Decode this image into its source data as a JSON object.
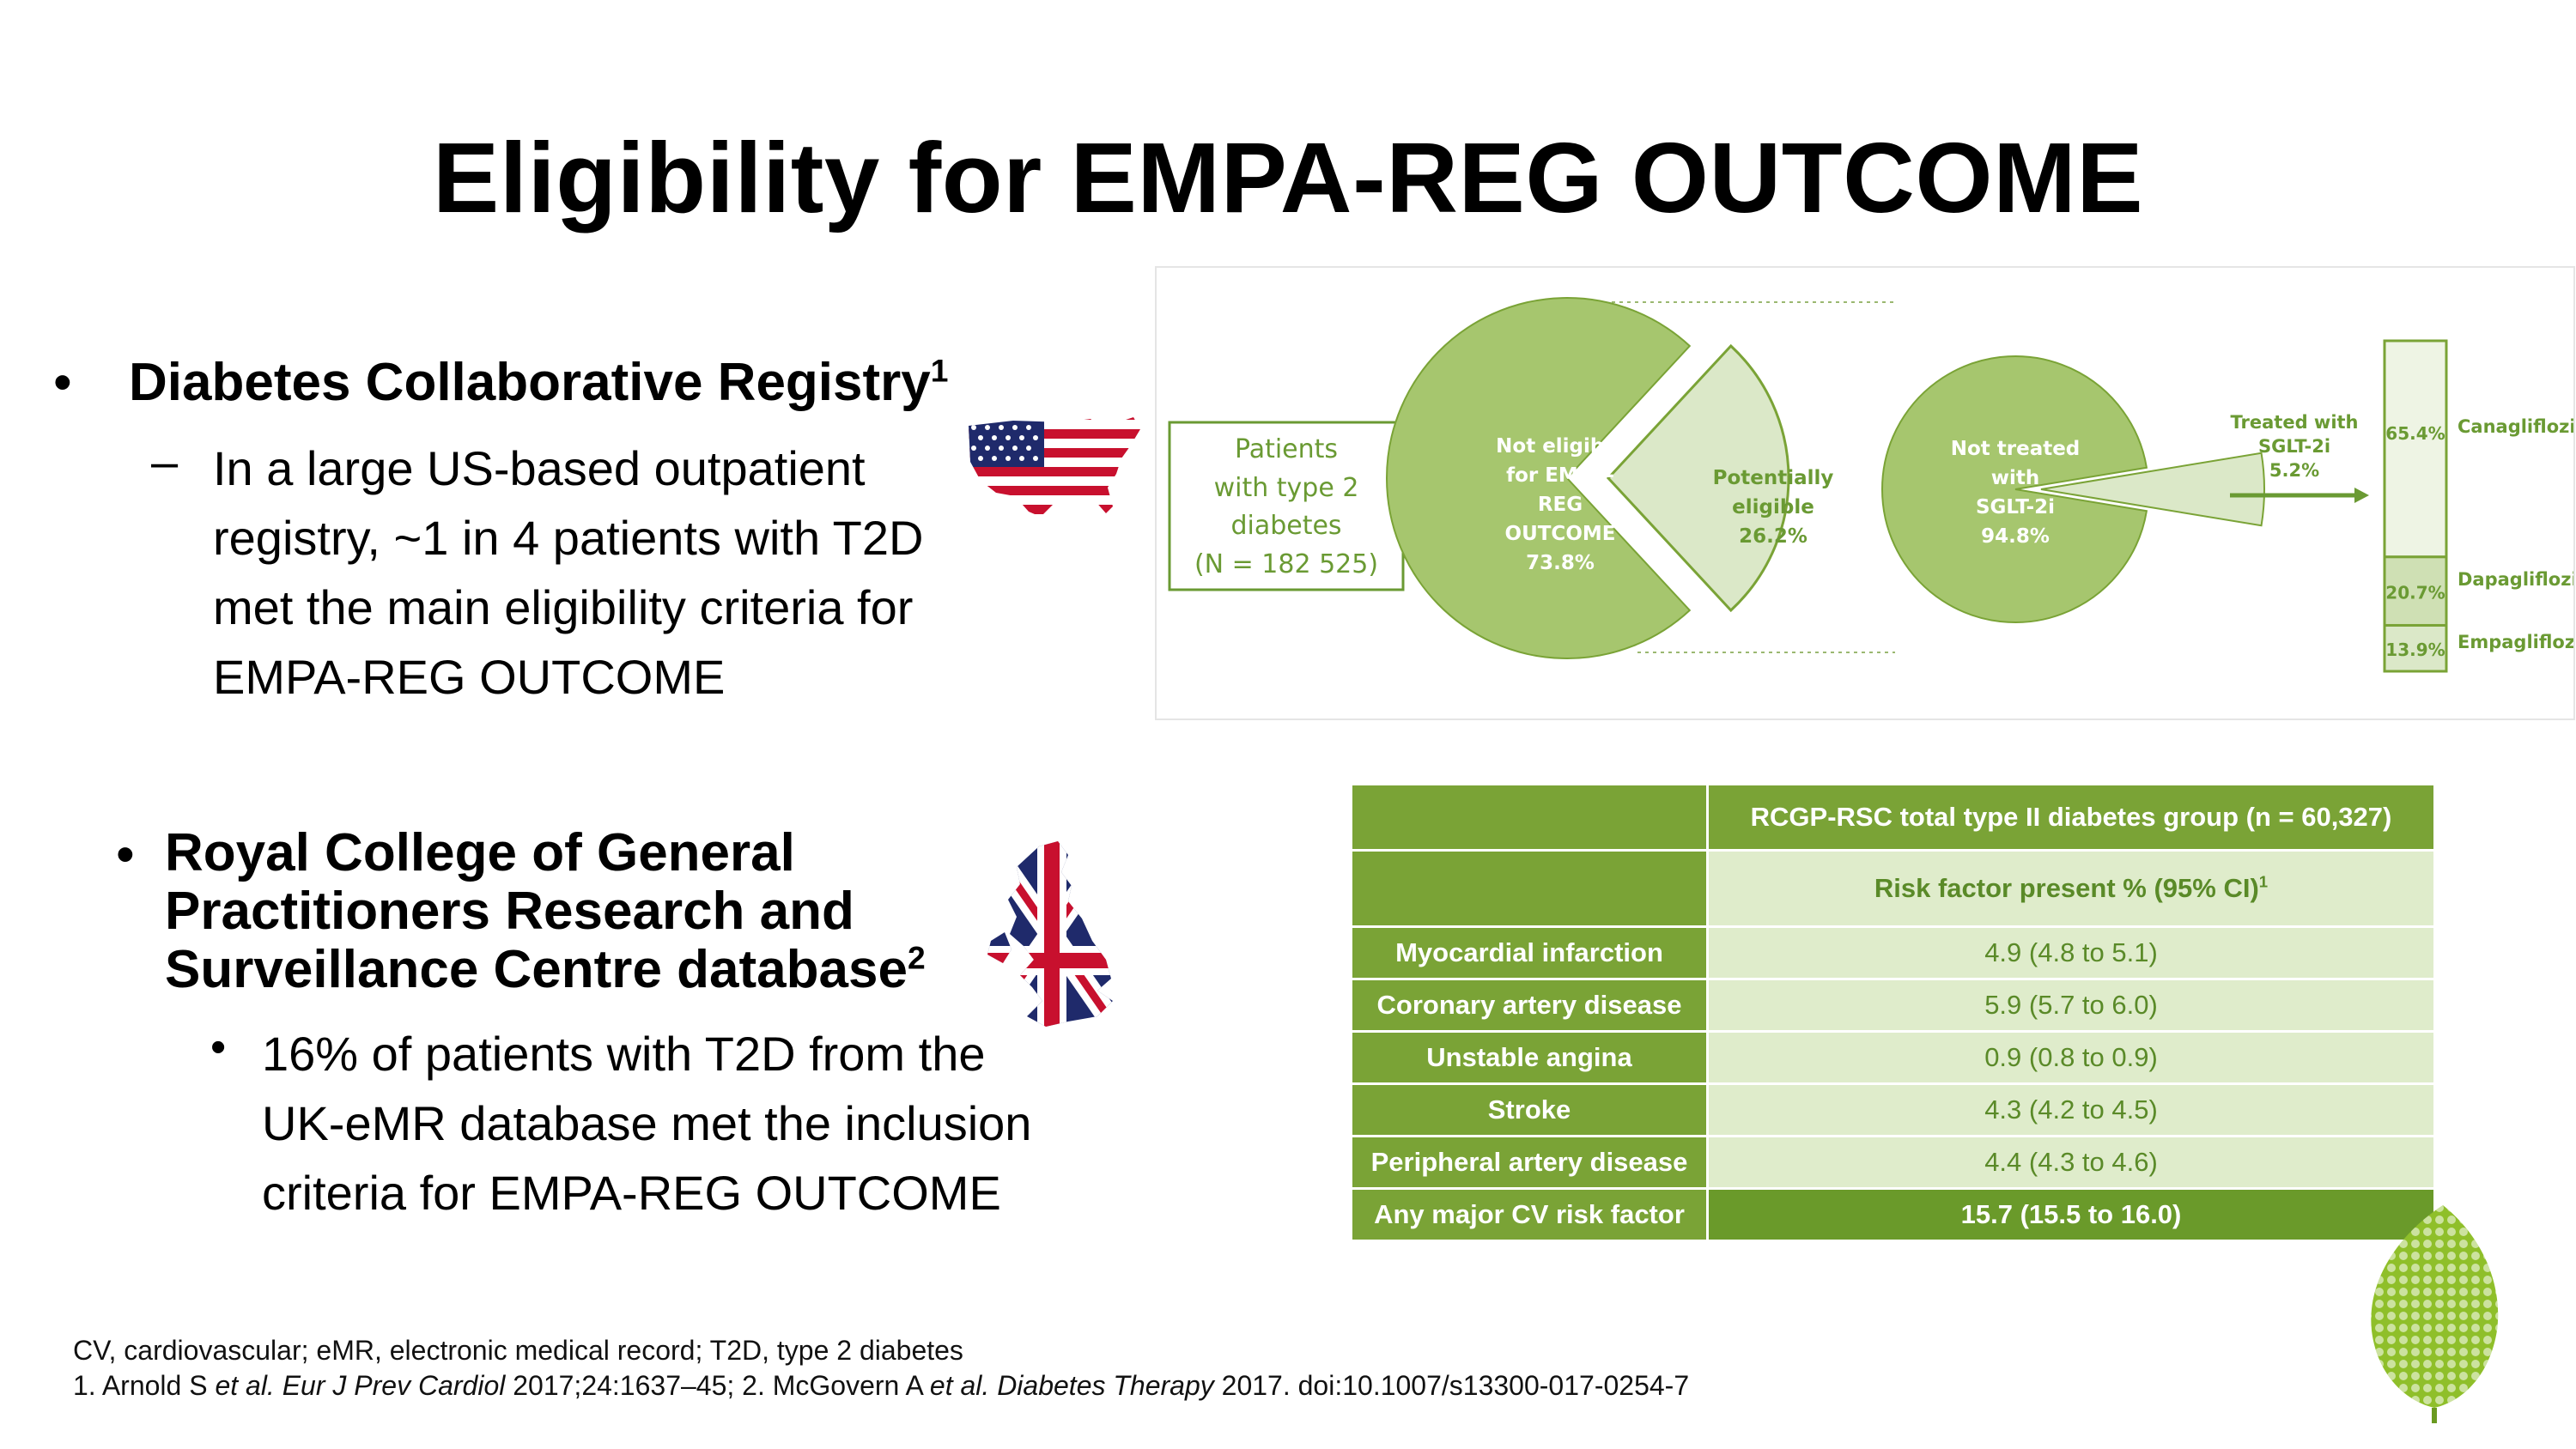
{
  "title": "Eligibility for EMPA-REG OUTCOME",
  "section1": {
    "bullet": "•",
    "heading": "Diabetes Collaborative Registry",
    "heading_sup": "1",
    "dash": "–",
    "lines": [
      "In a large US-based outpatient",
      "registry, ~1 in 4 patients with T2D",
      "met the main eligibility criteria for",
      "EMPA-REG OUTCOME"
    ]
  },
  "section2": {
    "bullet": "•",
    "heading_lines": [
      "Royal College of General",
      "Practitioners Research and",
      "Surveillance Centre database"
    ],
    "heading_sup": "2",
    "dot": "•",
    "lines": [
      "16% of patients with T2D from the",
      "UK-eMR database met the inclusion",
      "criteria for EMPA-REG OUTCOME"
    ]
  },
  "flags": {
    "us": "us-flag-map-icon",
    "uk": "uk-flag-map-icon"
  },
  "colors": {
    "green_dark": "#6a9a33",
    "green_mid": "#a6c66e",
    "green_light": "#dbe8c8",
    "green_table": "#7aa336"
  },
  "chart_data": {
    "type": "pie",
    "patients_box": [
      "Patients",
      "with type 2",
      "diabetes",
      "(N = 182 525)"
    ],
    "pie1": {
      "slices": [
        {
          "label_lines": [
            "Not eligible",
            "for EMPA-",
            "REG",
            "OUTCOME",
            "73.8%"
          ],
          "value": 73.8
        },
        {
          "label_lines": [
            "Potentially",
            "eligible",
            "26.2%"
          ],
          "value": 26.2
        }
      ]
    },
    "pie2": {
      "slices": [
        {
          "label_lines": [
            "Not treated",
            "with",
            "SGLT-2i",
            "94.8%"
          ],
          "value": 94.8
        },
        {
          "label_lines": [
            "Treated with",
            "SGLT-2i",
            "5.2%"
          ],
          "value": 5.2
        }
      ]
    },
    "stacked_bar": {
      "segments": [
        {
          "name": "Canagliflozin",
          "value": 65.4,
          "label": "65.4%"
        },
        {
          "name": "Dapagliflozin",
          "value": 20.7,
          "label": "20.7%"
        },
        {
          "name": "Empagliflozin",
          "value": 13.9,
          "label": "13.9%"
        }
      ]
    }
  },
  "table": {
    "header1": "RCGP-RSC total type II diabetes group (n = 60,327)",
    "header2": "Risk factor present % (95% CI)",
    "header2_sup": "1",
    "rows": [
      {
        "label": "Myocardial infarction",
        "value": "4.9 (4.8 to 5.1)"
      },
      {
        "label": "Coronary artery disease",
        "value": "5.9 (5.7 to 6.0)"
      },
      {
        "label": "Unstable angina",
        "value": "0.9 (0.8 to 0.9)"
      },
      {
        "label": "Stroke",
        "value": "4.3 (4.2 to 4.5)"
      },
      {
        "label": "Peripheral artery disease",
        "value": "4.4 (4.3 to 4.6)"
      },
      {
        "label": "Any major CV risk factor",
        "value": "15.7 (15.5 to 16.0)"
      }
    ]
  },
  "footnotes": {
    "abbrev": "CV, cardiovascular; eMR, electronic medical record; T2D, type 2 diabetes",
    "ref1_a": "1. Arnold S ",
    "ref1_etal": "et al.",
    "ref1_journal": " Eur J Prev Cardiol",
    "ref1_b": " 2017;24:1637–45; 2. McGovern A ",
    "ref2_etal": "et al.",
    "ref2_journal": " Diabetes Therapy",
    "ref2_b": " 2017. doi:10.1007/s13300-017-0254-7"
  },
  "logo": "leaf-logo-icon"
}
